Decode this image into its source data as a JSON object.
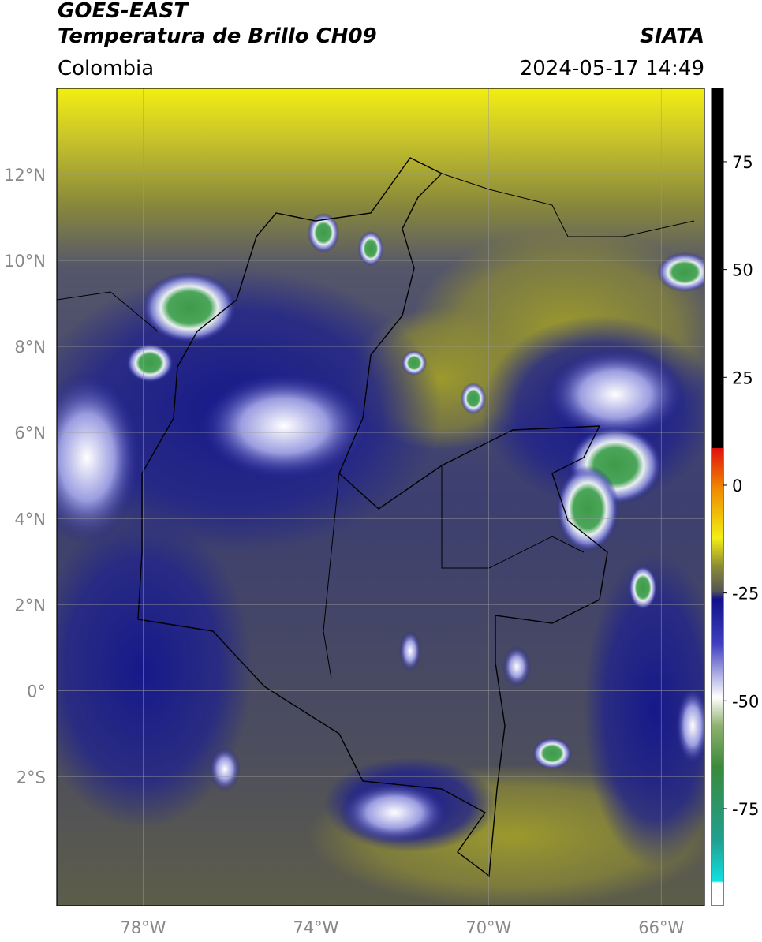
{
  "header": {
    "title": "GOES-EAST",
    "subtitle": "Temperatura de Brillo CH09",
    "region": "Colombia",
    "source": "SIATA",
    "timestamp": "2024-05-17 14:49"
  },
  "map": {
    "lonlim": [
      -80,
      -65
    ],
    "latlim": [
      -5,
      14
    ],
    "lon_ticks": [
      {
        "value": -78,
        "label": "78°W"
      },
      {
        "value": -74,
        "label": "74°W"
      },
      {
        "value": -70,
        "label": "70°W"
      },
      {
        "value": -66,
        "label": "66°W"
      }
    ],
    "lat_ticks": [
      {
        "value": 12,
        "label": "12°N"
      },
      {
        "value": 10,
        "label": "10°N"
      },
      {
        "value": 8,
        "label": "8°N"
      },
      {
        "value": 6,
        "label": "6°N"
      },
      {
        "value": 4,
        "label": "4°N"
      },
      {
        "value": 2,
        "label": "2°N"
      },
      {
        "value": 0,
        "label": "0°"
      },
      {
        "value": -2,
        "label": "2°S"
      }
    ],
    "grid": true
  },
  "colorbar": {
    "lim": [
      -97.5,
      92
    ],
    "ticks": [
      75,
      50,
      25,
      0,
      -25,
      -50,
      -75
    ]
  }
}
